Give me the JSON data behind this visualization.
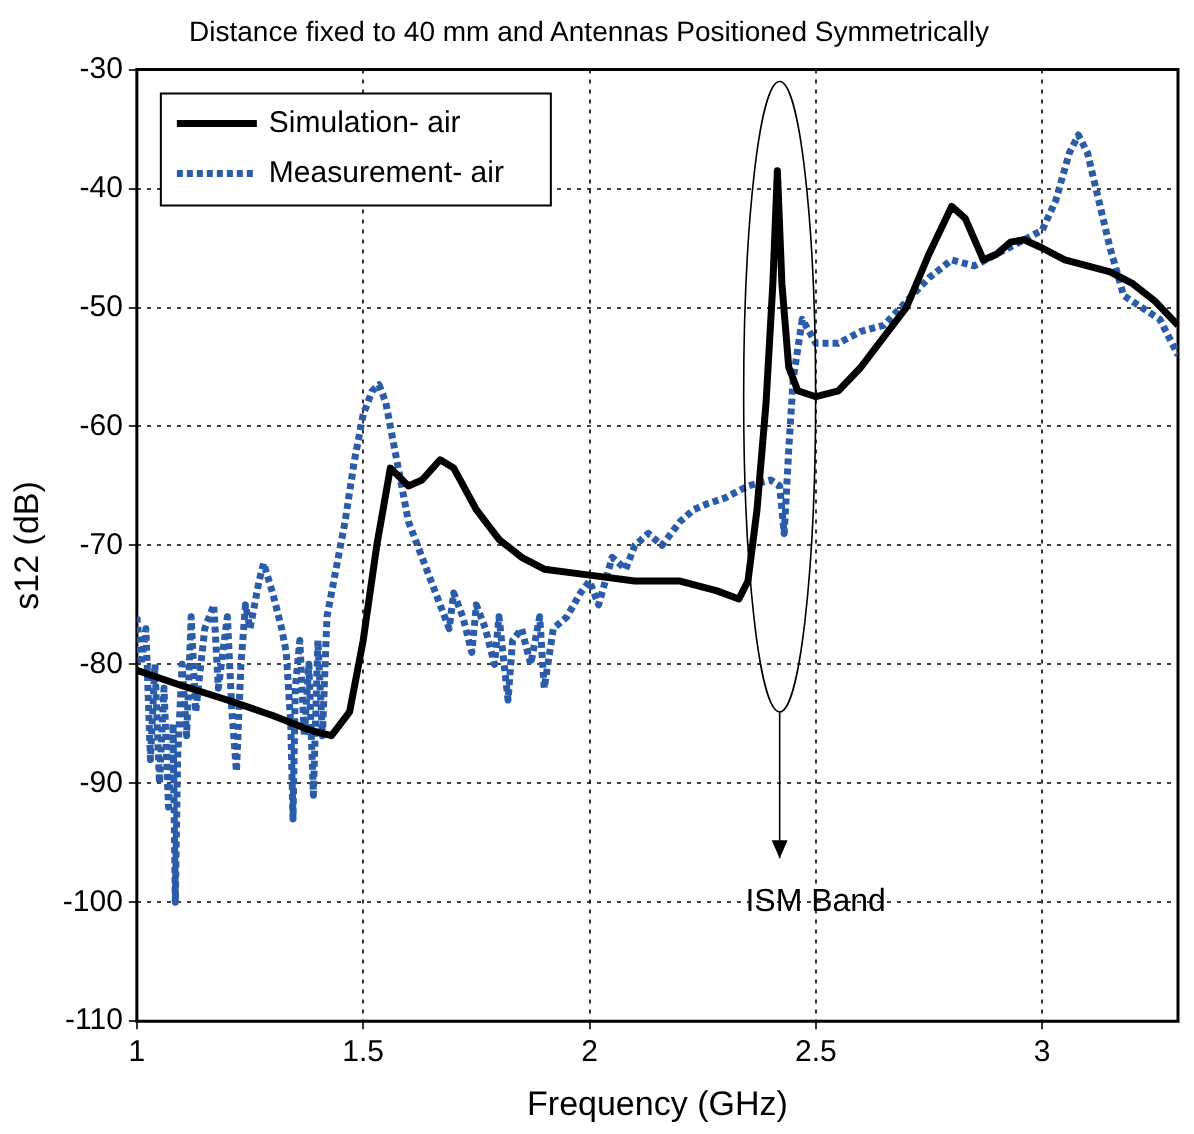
{
  "chart_data": {
    "type": "line",
    "title": "Distance fixed to 40 mm and Antennas Positioned Symmetrically",
    "xlabel": "Frequency (GHz)",
    "ylabel": "s12 (dB)",
    "xlim": [
      1,
      3.3
    ],
    "xticks": [
      1,
      1.5,
      2,
      2.5,
      3
    ],
    "ylim": [
      -110,
      -30
    ],
    "yticks": [
      -110,
      -100,
      -90,
      -80,
      -70,
      -60,
      -50,
      -40,
      -30
    ],
    "grid": true,
    "legend": "top left",
    "marker": "none",
    "annotations": [
      "ISM Band"
    ],
    "series": [
      {
        "name": "Simulation- air",
        "color": "#000000",
        "line_style": "solid",
        "x": [
          1,
          1.1,
          1.2,
          1.3,
          1.38,
          1.43,
          1.47,
          1.5,
          1.53,
          1.56,
          1.6,
          1.63,
          1.67,
          1.7,
          1.75,
          1.8,
          1.85,
          1.9,
          2.0,
          2.1,
          2.2,
          2.28,
          2.33,
          2.35,
          2.37,
          2.39,
          2.405,
          2.415,
          2.425,
          2.44,
          2.46,
          2.5,
          2.55,
          2.6,
          2.65,
          2.7,
          2.75,
          2.8,
          2.83,
          2.87,
          2.9,
          2.93,
          2.96,
          3.0,
          3.05,
          3.1,
          3.15,
          3.2,
          3.25,
          3.3
        ],
        "values": [
          -80.5,
          -81.8,
          -83,
          -84.3,
          -85.5,
          -86,
          -84,
          -78,
          -70,
          -63.5,
          -65,
          -64.5,
          -62.8,
          -63.5,
          -67,
          -69.5,
          -71,
          -72,
          -72.5,
          -73,
          -73,
          -73.8,
          -74.5,
          -73,
          -67,
          -58,
          -48,
          -38.5,
          -48,
          -55,
          -57,
          -57.5,
          -57,
          -55,
          -52.5,
          -50,
          -45.5,
          -41.5,
          -42.5,
          -46,
          -45.5,
          -44.5,
          -44.3,
          -45,
          -46,
          -46.5,
          -47,
          -48,
          -49.5,
          -51.5
        ]
      },
      {
        "name": "Measurement- air",
        "color": "#2a5caa",
        "line_style": "dotted",
        "x": [
          1.0,
          1.01,
          1.02,
          1.03,
          1.04,
          1.05,
          1.06,
          1.07,
          1.08,
          1.085,
          1.09,
          1.1,
          1.11,
          1.12,
          1.13,
          1.15,
          1.17,
          1.18,
          1.2,
          1.21,
          1.22,
          1.23,
          1.24,
          1.25,
          1.27,
          1.28,
          1.3,
          1.32,
          1.33,
          1.34,
          1.345,
          1.35,
          1.36,
          1.37,
          1.38,
          1.39,
          1.4,
          1.41,
          1.42,
          1.44,
          1.46,
          1.48,
          1.5,
          1.52,
          1.535,
          1.55,
          1.57,
          1.59,
          1.6,
          1.62,
          1.65,
          1.67,
          1.69,
          1.7,
          1.72,
          1.74,
          1.75,
          1.77,
          1.79,
          1.8,
          1.82,
          1.83,
          1.85,
          1.87,
          1.89,
          1.9,
          1.92,
          1.95,
          1.98,
          2.0,
          2.02,
          2.05,
          2.08,
          2.1,
          2.13,
          2.16,
          2.2,
          2.23,
          2.26,
          2.3,
          2.35,
          2.4,
          2.42,
          2.43,
          2.44,
          2.45,
          2.47,
          2.5,
          2.55,
          2.6,
          2.65,
          2.7,
          2.75,
          2.8,
          2.85,
          2.9,
          2.95,
          3.0,
          3.03,
          3.06,
          3.08,
          3.1,
          3.15,
          3.18,
          3.22,
          3.26,
          3.3
        ],
        "values": [
          -76,
          -80,
          -77,
          -88,
          -80,
          -90,
          -82,
          -92,
          -85,
          -100,
          -88,
          -80,
          -86,
          -76,
          -84,
          -77,
          -75,
          -82,
          -76,
          -84,
          -89,
          -80,
          -75,
          -77,
          -73,
          -71.5,
          -74,
          -77,
          -79,
          -85,
          -93,
          -82,
          -78,
          -86,
          -80,
          -91,
          -78,
          -86,
          -76,
          -72,
          -68,
          -63,
          -59,
          -57,
          -56.5,
          -58,
          -62,
          -66,
          -68,
          -70,
          -73,
          -75,
          -77,
          -74,
          -76,
          -79,
          -75,
          -77,
          -80,
          -76,
          -83,
          -78,
          -77,
          -80,
          -76,
          -82,
          -77,
          -76,
          -74,
          -73,
          -75,
          -71,
          -72,
          -70,
          -69,
          -70,
          -68,
          -67,
          -66.5,
          -66,
          -65,
          -64.5,
          -65,
          -69,
          -62,
          -56,
          -51,
          -53,
          -53,
          -52,
          -51.5,
          -49.5,
          -47.5,
          -46,
          -46.5,
          -45.5,
          -44.5,
          -43.5,
          -41,
          -37,
          -35.5,
          -37,
          -45,
          -49,
          -50,
          -51,
          -54
        ]
      }
    ]
  }
}
